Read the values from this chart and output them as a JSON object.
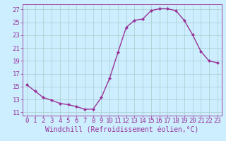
{
  "x": [
    0,
    1,
    2,
    3,
    4,
    5,
    6,
    7,
    8,
    9,
    10,
    11,
    12,
    13,
    14,
    15,
    16,
    17,
    18,
    19,
    20,
    21,
    22,
    23
  ],
  "y": [
    15.3,
    14.3,
    13.3,
    12.9,
    12.4,
    12.2,
    11.9,
    11.5,
    11.5,
    13.3,
    16.3,
    20.3,
    24.2,
    25.3,
    25.5,
    26.8,
    27.1,
    27.1,
    26.8,
    25.3,
    23.1,
    20.5,
    19.0,
    18.7
  ],
  "line_color": "#993399",
  "marker": "D",
  "marker_size": 2.5,
  "bg_color": "#cceeff",
  "grid_color": "#aacccc",
  "xlabel": "Windchill (Refroidissement éolien,°C)",
  "xlabel_fontsize": 7,
  "ylim": [
    10.5,
    27.8
  ],
  "xlim": [
    -0.5,
    23.5
  ],
  "yticks": [
    11,
    13,
    15,
    17,
    19,
    21,
    23,
    25,
    27
  ],
  "xticks": [
    0,
    1,
    2,
    3,
    4,
    5,
    6,
    7,
    8,
    9,
    10,
    11,
    12,
    13,
    14,
    15,
    16,
    17,
    18,
    19,
    20,
    21,
    22,
    23
  ],
  "tick_color": "#993399",
  "tick_fontsize": 6.5,
  "spine_color": "#993399",
  "line_width": 1.0
}
